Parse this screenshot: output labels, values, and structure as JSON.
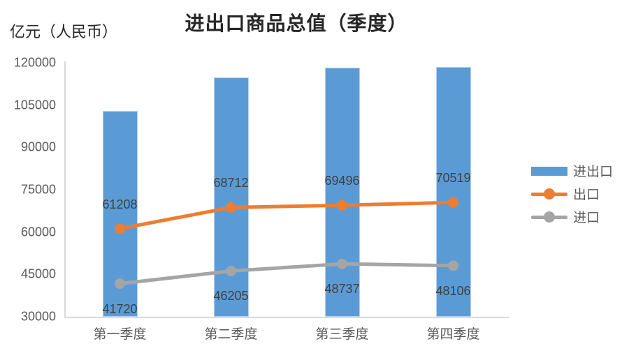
{
  "title": "进出口商品总值（季度）",
  "unit_label": "亿元（人民币）",
  "colors": {
    "bar_blue": "#5B9BD5",
    "line_orange": "#ED7D31",
    "line_gray": "#A5A5A5",
    "axis_line": "#D9D9D9",
    "tick_text": "#595959",
    "data_label_text": "#404040",
    "title_text": "#262626"
  },
  "chart_data": {
    "type": "bar",
    "subtype": "bar-with-lines-combo",
    "title": "进出口商品总值（季度）",
    "ylabel": "亿元（人民币）",
    "xlabel": "",
    "categories": [
      "第一季度",
      "第二季度",
      "第三季度",
      "第四季度"
    ],
    "series": [
      {
        "name": "进出口",
        "type": "bar",
        "color": "#5B9BD5",
        "values": [
          102928,
          114917,
          118233,
          118625
        ],
        "data_labels": false
      },
      {
        "name": "出口",
        "type": "line",
        "color": "#ED7D31",
        "values": [
          61208,
          68712,
          69496,
          70519
        ],
        "data_labels": true,
        "label_position": "above"
      },
      {
        "name": "进口",
        "type": "line",
        "color": "#A5A5A5",
        "values": [
          41720,
          46205,
          48737,
          48106
        ],
        "data_labels": true,
        "label_position": "below"
      }
    ],
    "yticks": [
      30000,
      45000,
      60000,
      75000,
      90000,
      105000,
      120000
    ],
    "ylim": [
      30000,
      120000
    ],
    "grid": false,
    "legend_position": "right"
  }
}
